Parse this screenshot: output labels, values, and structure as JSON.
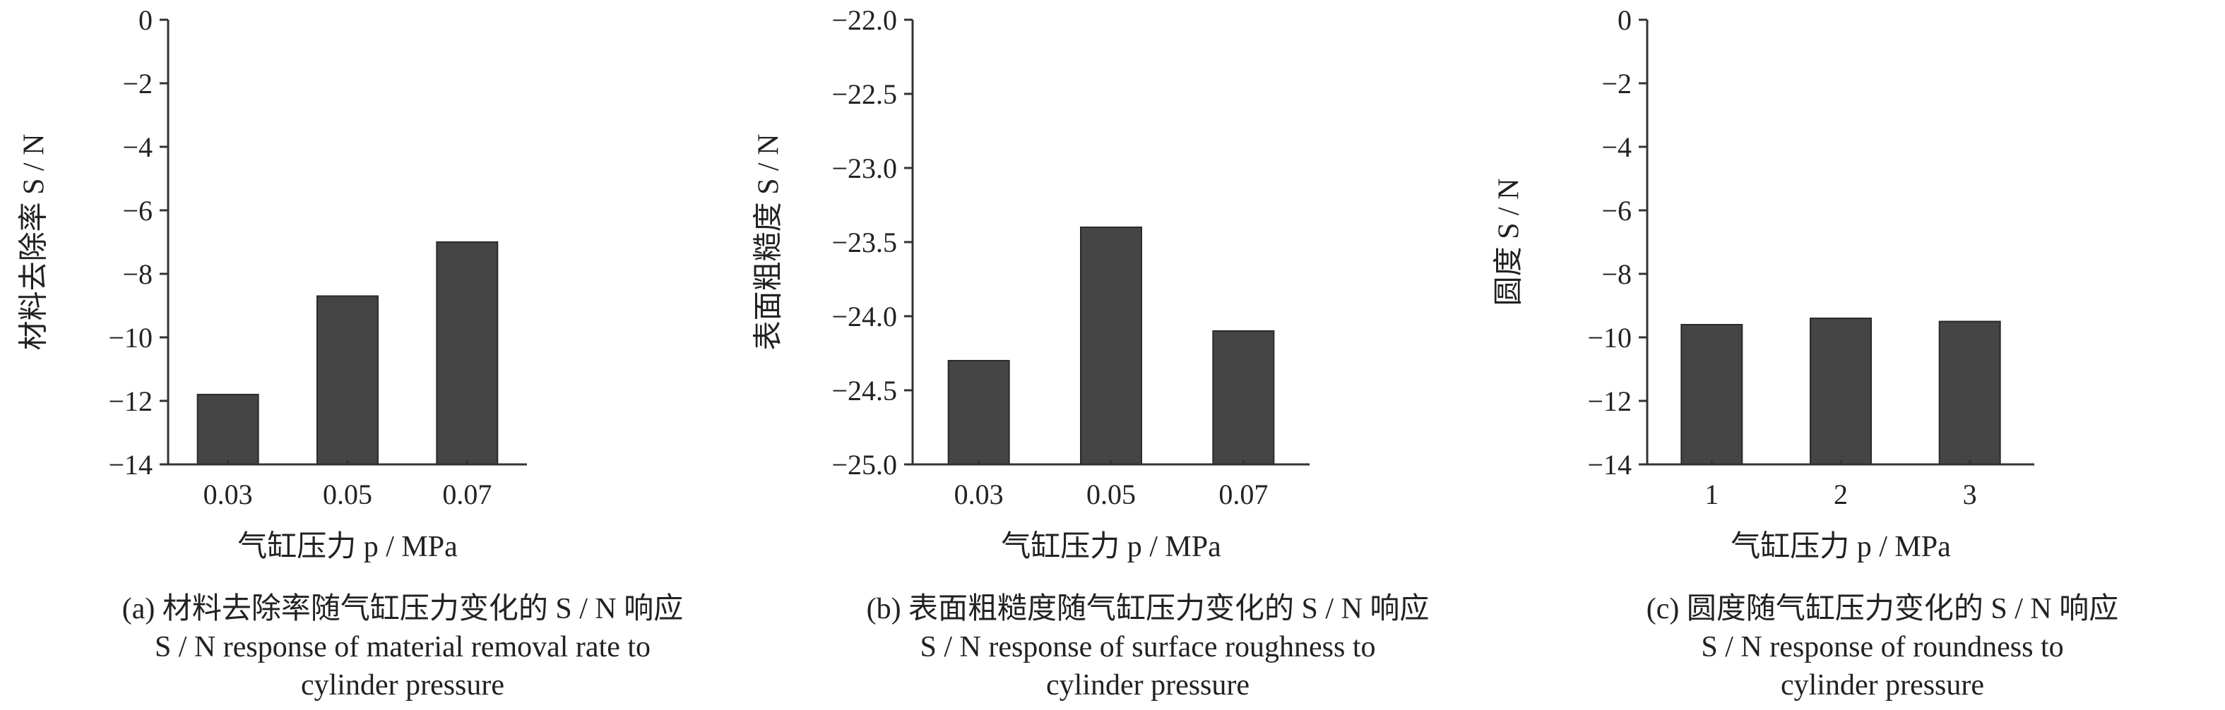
{
  "colors": {
    "bar_fill": "#454545",
    "axis": "#333333",
    "background": "#ffffff"
  },
  "chart_data": [
    {
      "type": "bar",
      "categories": [
        "0.03",
        "0.05",
        "0.07"
      ],
      "values": [
        -11.8,
        -8.7,
        -7.0
      ],
      "ylim": [
        -14,
        0
      ],
      "yticks": [
        "0",
        "−2",
        "−4",
        "−6",
        "−8",
        "−10",
        "−12",
        "−14"
      ],
      "ytick_values": [
        0,
        -2,
        -4,
        -6,
        -8,
        -10,
        -12,
        -14
      ],
      "ylabel": "材料去除率 S / N",
      "xlabel": "气缸压力 p / MPa",
      "caption": [
        "(a) 材料去除率随气缸压力变化的 S / N 响应",
        "S / N response of material removal rate to",
        "cylinder pressure"
      ],
      "grid": false
    },
    {
      "type": "bar",
      "categories": [
        "0.03",
        "0.05",
        "0.07"
      ],
      "values": [
        -24.3,
        -23.4,
        -24.1
      ],
      "ylim": [
        -25.0,
        -22.0
      ],
      "yticks": [
        "−22.0",
        "−22.5",
        "−23.0",
        "−23.5",
        "−24.0",
        "−24.5",
        "−25.0"
      ],
      "ytick_values": [
        -22.0,
        -22.5,
        -23.0,
        -23.5,
        -24.0,
        -24.5,
        -25.0
      ],
      "ylabel": "表面粗糙度 S / N",
      "xlabel": "气缸压力 p / MPa",
      "caption": [
        "(b) 表面粗糙度随气缸压力变化的 S / N 响应",
        "S / N response of surface roughness to",
        "cylinder pressure"
      ],
      "grid": false
    },
    {
      "type": "bar",
      "categories": [
        "1",
        "2",
        "3"
      ],
      "values": [
        -9.6,
        -9.4,
        -9.5
      ],
      "ylim": [
        -14,
        0
      ],
      "yticks": [
        "0",
        "−2",
        "−4",
        "−6",
        "−8",
        "−10",
        "−12",
        "−14"
      ],
      "ytick_values": [
        0,
        -2,
        -4,
        -6,
        -8,
        -10,
        -12,
        -14
      ],
      "ylabel": "圆度 S / N",
      "xlabel": "气缸压力 p / MPa",
      "caption": [
        "(c) 圆度随气缸压力变化的 S / N 响应",
        "S / N response of roundness to",
        "cylinder pressure"
      ],
      "grid": false
    }
  ]
}
